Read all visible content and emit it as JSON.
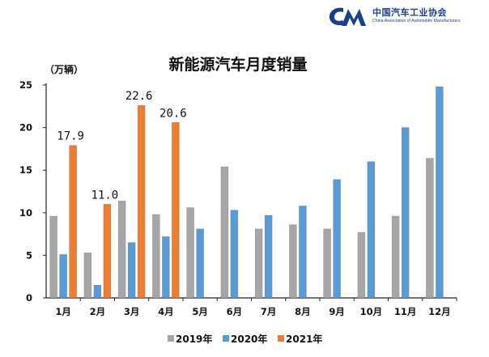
{
  "logo": {
    "name": "中国汽车工业协会",
    "subtitle": "China Association of Automobile Manufacturers",
    "color": "#1a3f8f"
  },
  "chart_data": {
    "type": "bar",
    "title": "新能源汽车月度销量",
    "unit_label": "（万辆）",
    "xlabel": "",
    "ylabel": "",
    "categories": [
      "1月",
      "2月",
      "3月",
      "4月",
      "5月",
      "6月",
      "7月",
      "8月",
      "9月",
      "10月",
      "11月",
      "12月"
    ],
    "ylim": [
      0,
      25
    ],
    "yticks": [
      0,
      5,
      10,
      15,
      20,
      25
    ],
    "grid": false,
    "legend": "bottom",
    "series": [
      {
        "name": "2019年",
        "color": "#a6a6a6",
        "values": [
          9.6,
          5.3,
          11.4,
          9.8,
          10.6,
          15.4,
          8.1,
          8.6,
          8.1,
          7.7,
          9.6,
          16.4
        ]
      },
      {
        "name": "2020年",
        "color": "#5b9bd5",
        "values": [
          5.1,
          1.5,
          6.5,
          7.2,
          8.1,
          10.3,
          9.7,
          10.8,
          13.9,
          16.0,
          20.0,
          24.8
        ]
      },
      {
        "name": "2021年",
        "color": "#ed7d31",
        "values": [
          17.9,
          11.0,
          22.6,
          20.6,
          null,
          null,
          null,
          null,
          null,
          null,
          null,
          null
        ]
      }
    ],
    "data_labels": [
      {
        "series": "2021年",
        "category": "1月",
        "text": "17.9"
      },
      {
        "series": "2021年",
        "category": "2月",
        "text": "11.0"
      },
      {
        "series": "2021年",
        "category": "3月",
        "text": "22.6"
      },
      {
        "series": "2021年",
        "category": "4月",
        "text": "20.6"
      }
    ]
  }
}
